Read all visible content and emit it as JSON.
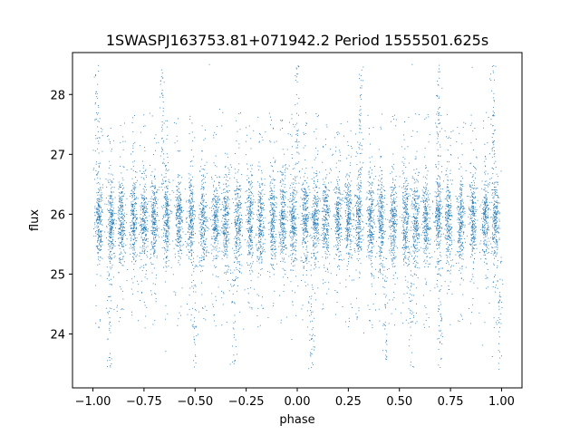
{
  "chart_data": {
    "type": "scatter",
    "title": "1SWASPJ163753.81+071942.2 Period 1555501.625s",
    "xlabel": "phase",
    "ylabel": "flux",
    "xlim": [
      -1.1,
      1.1
    ],
    "ylim": [
      23.1,
      28.7
    ],
    "xticks": [
      -1.0,
      -0.75,
      -0.5,
      -0.25,
      0.0,
      0.25,
      0.5,
      0.75,
      1.0
    ],
    "xtick_labels": [
      "−1.00",
      "−0.75",
      "−0.50",
      "−0.25",
      "0.00",
      "0.25",
      "0.50",
      "0.75",
      "1.00"
    ],
    "yticks": [
      24,
      25,
      26,
      27,
      28
    ],
    "ytick_labels": [
      "24",
      "25",
      "26",
      "27",
      "28"
    ],
    "grid": false,
    "marker_color": "#1f77b4",
    "series": [
      {
        "phase_range": [
          -1.0,
          1.0
        ],
        "flux_center": 25.9,
        "flux_core_spread": 0.35,
        "flux_min": 23.4,
        "flux_max": 28.5,
        "cluster_phases": [
          -0.97,
          -0.91,
          -0.86,
          -0.8,
          -0.75,
          -0.7,
          -0.64,
          -0.58,
          -0.52,
          -0.46,
          -0.4,
          -0.35,
          -0.29,
          -0.23,
          -0.18,
          -0.12,
          -0.07,
          -0.02,
          0.04,
          0.09,
          0.14,
          0.2,
          0.25,
          0.3,
          0.36,
          0.41,
          0.47,
          0.53,
          0.58,
          0.63,
          0.69,
          0.74,
          0.8,
          0.86,
          0.92,
          0.97
        ],
        "high_outlier_phases": [
          -0.98,
          -0.66,
          0.0,
          0.31,
          0.69,
          0.96
        ],
        "low_outlier_phases": [
          -0.92,
          -0.5,
          -0.31,
          0.07,
          0.43,
          0.56,
          0.7,
          0.99
        ]
      }
    ]
  }
}
